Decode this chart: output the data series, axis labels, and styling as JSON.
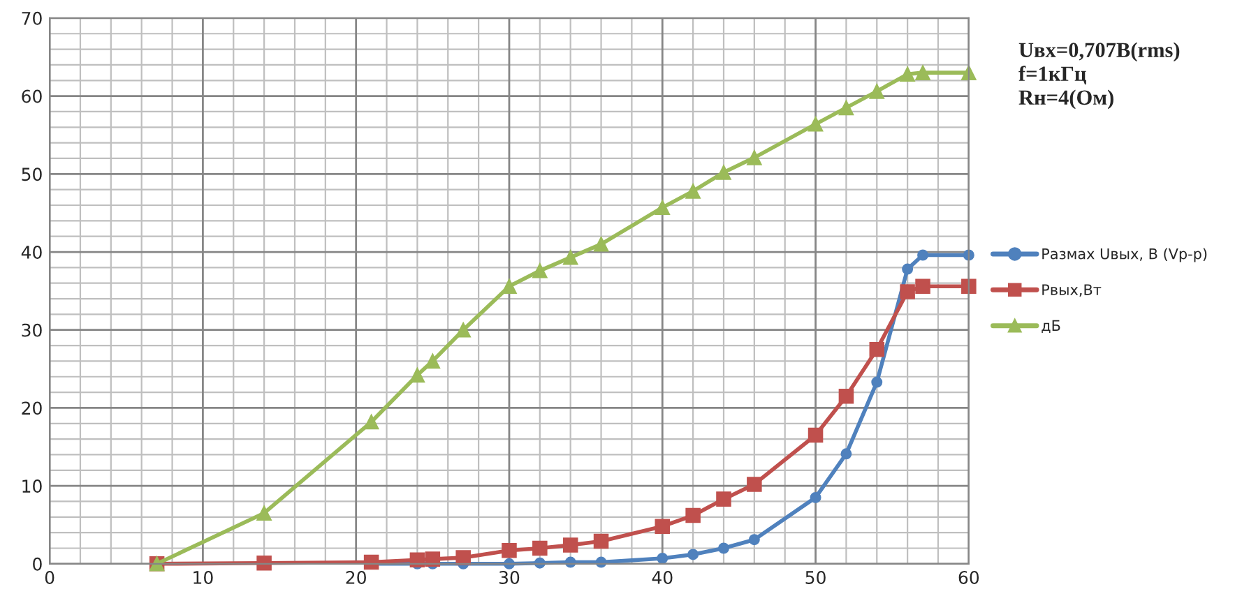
{
  "chart_data": {
    "type": "line",
    "x": [
      7,
      14,
      21,
      24,
      25,
      27,
      30,
      32,
      34,
      36,
      40,
      42,
      44,
      46,
      50,
      52,
      54,
      56,
      57,
      60
    ],
    "series": [
      {
        "name": "Размах Uвых, В (Vp-p)",
        "color": "#4f81bd",
        "marker": "circle",
        "values": [
          null,
          null,
          0,
          0,
          0,
          0,
          0,
          0.1,
          0.2,
          0.2,
          0.7,
          1.2,
          2,
          3.1,
          8.5,
          14.1,
          23.3,
          37.8,
          39.6,
          39.6
        ]
      },
      {
        "name": "Рвых,Вт",
        "color": "#c0504d",
        "marker": "square",
        "values": [
          0,
          0.1,
          0.2,
          0.5,
          0.6,
          0.8,
          1.7,
          2,
          2.4,
          2.9,
          4.8,
          6.2,
          8.3,
          10.2,
          16.5,
          21.5,
          27.5,
          34.9,
          35.6,
          35.6
        ]
      },
      {
        "name": "дБ",
        "color": "#9bbb59",
        "marker": "triangle",
        "values": [
          0,
          6.5,
          18.2,
          24.2,
          26,
          30,
          35.6,
          37.6,
          39.3,
          41,
          45.7,
          47.8,
          50.2,
          52.1,
          56.4,
          58.5,
          60.6,
          62.8,
          63,
          63
        ]
      }
    ],
    "xlim": [
      0,
      60
    ],
    "xticks": [
      0,
      10,
      20,
      30,
      40,
      50,
      60
    ],
    "ylim": [
      0,
      70
    ],
    "yticks": [
      0,
      10,
      20,
      30,
      40,
      50,
      60,
      70
    ],
    "grid": true,
    "legend": "right",
    "annotations": [
      "Uвх=0,707В(rms)\nf=1кГц\nRн=4(Ом)"
    ]
  }
}
